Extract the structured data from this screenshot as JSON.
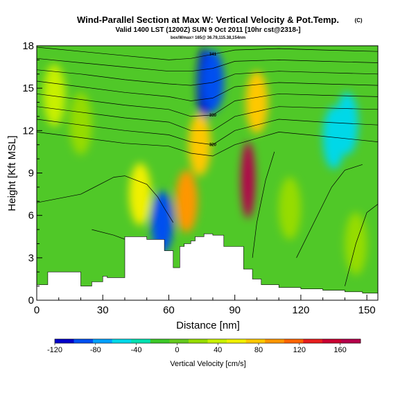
{
  "header": {
    "title": "Wind-Parallel Section at Max W: Vertical Velocity & Pot.Temp.",
    "title_mark": "(C)",
    "subtitle": "Valid 1400 LST (1200Z) SUN 9 Oct 2011 [10hr cst@2318-]",
    "subtitle2": "box/Wmax= 165@ 36.79,115.38,154nm"
  },
  "chart_data": {
    "type": "heatmap",
    "xlabel": "Distance [nm]",
    "ylabel": "Height [Kft MSL]",
    "xlim": [
      0,
      155
    ],
    "ylim": [
      0,
      18
    ],
    "xticks": [
      0,
      30,
      60,
      90,
      120,
      150
    ],
    "yticks": [
      0,
      3,
      6,
      9,
      12,
      15,
      18
    ],
    "colorbar": {
      "label": "Vertical Velocity [cm/s]",
      "range": [
        -120,
        180
      ],
      "ticks": [
        -120,
        -80,
        -40,
        0,
        40,
        80,
        120,
        160
      ],
      "colors": [
        "#0000c8",
        "#0050f0",
        "#00a0ff",
        "#00d8e8",
        "#00e0b0",
        "#3cc828",
        "#64c81e",
        "#96dc00",
        "#c8f000",
        "#f0f000",
        "#ffc800",
        "#ff9600",
        "#ff6400",
        "#e61e1e",
        "#c80032",
        "#b4004b"
      ]
    },
    "terrain": {
      "x": [
        0,
        5,
        15,
        20,
        25,
        30,
        32,
        40,
        50,
        58,
        62,
        65,
        67,
        70,
        72,
        76,
        80,
        85,
        90,
        94,
        98,
        102,
        110,
        120,
        130,
        140,
        148,
        155
      ],
      "top": [
        1.1,
        2.0,
        2.0,
        1.0,
        1.3,
        1.7,
        1.6,
        4.5,
        4.3,
        3.5,
        2.3,
        3.8,
        4.0,
        4.2,
        4.5,
        4.7,
        4.6,
        3.8,
        3.8,
        2.2,
        1.5,
        1.1,
        0.9,
        0.8,
        0.7,
        0.6,
        0.5,
        0.4
      ]
    },
    "velocity_features": [
      {
        "x": 96,
        "y": 8.5,
        "value": 165
      },
      {
        "x": 76,
        "y": 15.2,
        "value": -110
      },
      {
        "x": 80,
        "y": 15.5,
        "value": -90
      },
      {
        "x": 57,
        "y": 5.5,
        "value": -85
      },
      {
        "x": 68,
        "y": 7.0,
        "value": 90
      },
      {
        "x": 74,
        "y": 11.0,
        "value": 85
      },
      {
        "x": 100,
        "y": 14.0,
        "value": 70
      },
      {
        "x": 47,
        "y": 7.5,
        "value": 65
      },
      {
        "x": 135,
        "y": 11.5,
        "value": -50
      },
      {
        "x": 141,
        "y": 12.5,
        "value": -55
      },
      {
        "x": 8,
        "y": 14.5,
        "value": 30
      },
      {
        "x": 20,
        "y": 12.5,
        "value": 15
      },
      {
        "x": 115,
        "y": 6.5,
        "value": 25
      },
      {
        "x": 145,
        "y": 4.0,
        "value": 20
      }
    ],
    "contours": [
      {
        "label": "341",
        "x": [
          0,
          20,
          40,
          60,
          70,
          80,
          90,
          110,
          130,
          155
        ],
        "y": [
          17.9,
          17.6,
          17.3,
          17.0,
          17.1,
          17.4,
          17.7,
          17.8,
          17.7,
          17.6
        ]
      },
      {
        "label": "",
        "x": [
          0,
          20,
          40,
          60,
          70,
          80,
          90,
          110,
          130,
          155
        ],
        "y": [
          17.1,
          16.8,
          16.5,
          16.2,
          16.2,
          16.4,
          16.9,
          17.0,
          16.9,
          16.8
        ]
      },
      {
        "label": "",
        "x": [
          0,
          20,
          40,
          60,
          70,
          80,
          90,
          110,
          130,
          155
        ],
        "y": [
          16.3,
          16.0,
          15.6,
          15.3,
          15.2,
          15.4,
          16.0,
          16.2,
          16.1,
          16.0
        ]
      },
      {
        "label": "",
        "x": [
          0,
          20,
          40,
          60,
          70,
          80,
          90,
          110,
          130,
          155
        ],
        "y": [
          15.5,
          15.1,
          14.7,
          14.4,
          14.1,
          14.3,
          15.1,
          15.4,
          15.3,
          15.2
        ]
      },
      {
        "label": "330",
        "x": [
          0,
          20,
          40,
          60,
          70,
          80,
          90,
          110,
          130,
          155
        ],
        "y": [
          14.6,
          14.2,
          13.8,
          13.5,
          13.0,
          13.1,
          14.1,
          14.6,
          14.5,
          14.4
        ]
      },
      {
        "label": "",
        "x": [
          0,
          20,
          40,
          60,
          70,
          80,
          90,
          110,
          130,
          155
        ],
        "y": [
          13.7,
          13.3,
          12.9,
          12.6,
          12.0,
          12.0,
          13.0,
          13.7,
          13.6,
          13.5
        ]
      },
      {
        "label": "320",
        "x": [
          0,
          20,
          40,
          60,
          70,
          80,
          90,
          110,
          130,
          155
        ],
        "y": [
          12.8,
          12.4,
          12.0,
          11.7,
          11.2,
          11.0,
          12.0,
          12.8,
          12.6,
          12.4
        ]
      },
      {
        "label": "",
        "x": [
          0,
          20,
          40,
          60,
          70,
          80,
          90,
          110,
          130,
          155
        ],
        "y": [
          11.9,
          11.5,
          11.1,
          10.9,
          10.4,
          10.2,
          11.0,
          11.9,
          11.6,
          11.2
        ]
      },
      {
        "label": "",
        "x": [
          0,
          20,
          35,
          40,
          50,
          55,
          58,
          62
        ],
        "y": [
          6.9,
          7.5,
          8.7,
          8.8,
          8.2,
          7.3,
          6.5,
          5.5
        ]
      },
      {
        "label": "",
        "x": [
          25,
          35,
          42,
          45
        ],
        "y": [
          5.0,
          4.6,
          4.2,
          3.5
        ]
      },
      {
        "label": "",
        "x": [
          98,
          100,
          104,
          108
        ],
        "y": [
          3.0,
          5.5,
          8.5,
          10.5
        ]
      },
      {
        "label": "",
        "x": [
          118,
          126,
          134,
          140,
          148
        ],
        "y": [
          3.0,
          5.5,
          8.0,
          9.2,
          9.6
        ]
      },
      {
        "label": "",
        "x": [
          140,
          145,
          150,
          155
        ],
        "y": [
          1.0,
          4.0,
          6.2,
          6.8
        ]
      }
    ]
  }
}
